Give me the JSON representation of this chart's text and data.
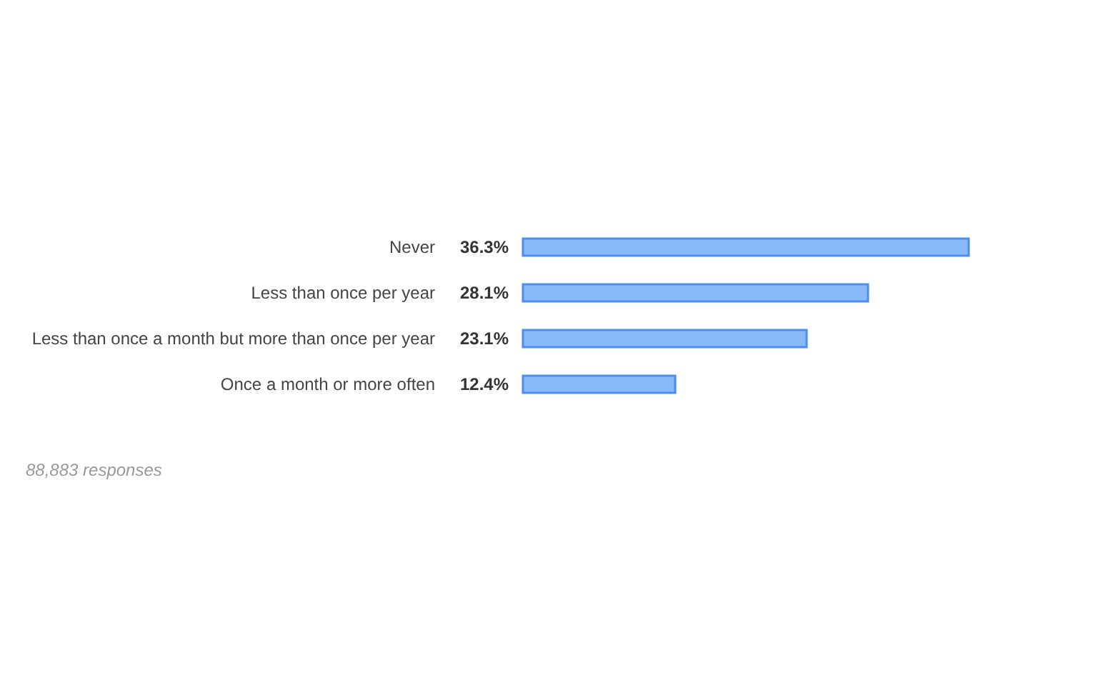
{
  "chart_data": {
    "type": "bar",
    "orientation": "horizontal",
    "categories": [
      "Never",
      "Less than once per year",
      "Less than once a month but more than once per year",
      "Once a month or more often"
    ],
    "values": [
      36.3,
      28.1,
      23.1,
      12.4
    ],
    "value_labels": [
      "36.3%",
      "28.1%",
      "23.1%",
      "12.4%"
    ],
    "color": "#8ab9f8",
    "annotations": [
      "88,883 responses"
    ]
  }
}
